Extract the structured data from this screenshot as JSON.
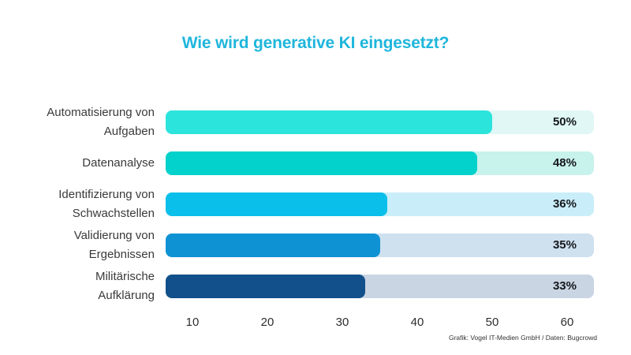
{
  "title": "Wie wird generative KI eingesetzt?",
  "credit": "Grafik: Vogel IT-Medien GmbH / Daten: Bugcrowd",
  "colors": {
    "background": "#ffffff",
    "title_text": "#1FB6DC",
    "label_text": "#3A3A3A",
    "value_text": "#15181C",
    "axis_text": "#2E2E2E",
    "credit_text": "#333333"
  },
  "chart_data": {
    "type": "bar",
    "orientation": "horizontal",
    "title": "Wie wird generative KI eingesetzt?",
    "unit": "%",
    "categories": [
      "Automatisierung von Aufgaben",
      "Datenanalyse",
      "Identifizierung von Schwachstellen",
      "Validierung von Ergebnissen",
      "Militärische Aufklärung"
    ],
    "category_lines": [
      [
        "Automatisierung von",
        "Aufgaben"
      ],
      [
        "Datenanalyse"
      ],
      [
        "Identifizierung von",
        "Schwachstellen"
      ],
      [
        "Validierung von",
        "Ergebnissen"
      ],
      [
        "Militärische",
        "Aufklärung"
      ]
    ],
    "values": [
      50,
      48,
      36,
      35,
      33
    ],
    "value_labels": [
      "50%",
      "48%",
      "36%",
      "35%",
      "33%"
    ],
    "bar_colors": [
      "#2BE4DC",
      "#03D1CB",
      "#0ABFE9",
      "#0E92D3",
      "#11508A"
    ],
    "track_colors": [
      "#E0F7F5",
      "#C8F2EC",
      "#C9EEF9",
      "#CFE0EF",
      "#C9D5E3"
    ],
    "x_ticks": [
      10,
      20,
      30,
      40,
      50,
      60
    ],
    "xlim": [
      6.4,
      63.6
    ],
    "grid": false,
    "legend": false,
    "source": "Grafik: Vogel IT-Medien GmbH / Daten: Bugcrowd"
  }
}
